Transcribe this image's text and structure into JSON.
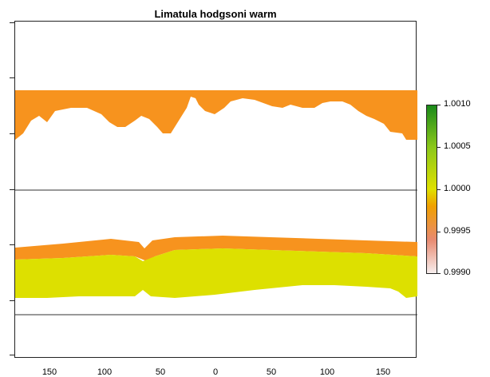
{
  "title": "Limatula hodgsoni warm",
  "x_tick_labels": [
    "150",
    "100",
    "50",
    "0",
    "50",
    "100",
    "150"
  ],
  "x_tick_values": [
    -150,
    -100,
    -50,
    0,
    50,
    100,
    150
  ],
  "legend": {
    "labels": [
      "1.0010",
      "1.0005",
      "1.0000",
      "0.9995",
      "0.9990"
    ],
    "values": [
      1.001,
      1.0005,
      1.0,
      0.9995,
      0.999
    ],
    "colors": {
      "low": "#f2f2f2",
      "mid_low": "#e8a090",
      "orange": "#f39200",
      "yellow": "#dfe000",
      "high": "#1a8a1a"
    }
  },
  "map_colors": {
    "north_band": "#f7931e",
    "south_band_top": "#f7931e",
    "south_band_main": "#dde000",
    "line": "#333333"
  }
}
